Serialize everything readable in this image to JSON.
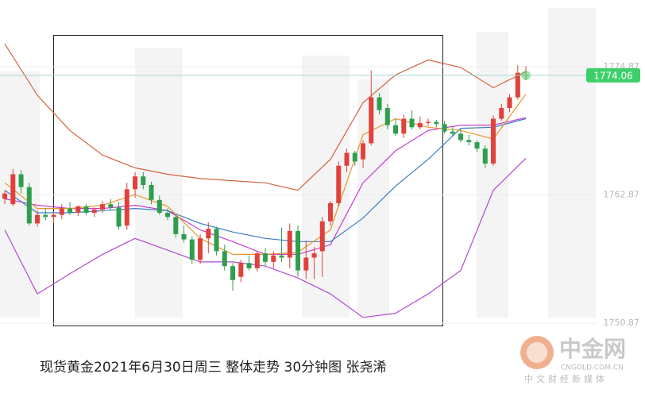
{
  "chart_data": {
    "type": "candlestick",
    "title": "现货黄金2021年6月30日周三 整体走势  30分钟图 张尧浠",
    "watermark": {
      "brand": "中金网",
      "site": "CNGOLD.COM.CN",
      "slogan": "中文财经新媒体"
    },
    "up_color": "#e0413a",
    "down_color": "#2e9e4c",
    "xlim": [
      -0.59,
      78.63
    ],
    "ylim": [
      1744.33,
      1781.11
    ],
    "yticks": [
      1774.87,
      1762.87,
      1750.87
    ],
    "current_price": 1774.06,
    "current_color": "#3ecf6a",
    "x": [
      0,
      1,
      2,
      3,
      4,
      5,
      6,
      7,
      8,
      9,
      10,
      11,
      12,
      13,
      14,
      15,
      16,
      17,
      18,
      19,
      20,
      21,
      22,
      23,
      24,
      25,
      26,
      27,
      28,
      29,
      30,
      31,
      32,
      33,
      34,
      35,
      36,
      37,
      38,
      39,
      40,
      41,
      42,
      43,
      44,
      45,
      46,
      47,
      48,
      49,
      50,
      51,
      52,
      53,
      54,
      55,
      56,
      57,
      58,
      59,
      60,
      61,
      62,
      63,
      64
    ],
    "open": [
      1762.5,
      1762.0,
      1764.8,
      1763.6,
      1760.2,
      1761.0,
      1760.8,
      1761.0,
      1761.6,
      1761.2,
      1761.8,
      1761.2,
      1761.5,
      1762.0,
      1761.7,
      1760.0,
      1763.4,
      1764.6,
      1763.8,
      1762.4,
      1761.2,
      1760.8,
      1759.2,
      1758.7,
      1756.8,
      1758.8,
      1759.7,
      1757.6,
      1756.2,
      1755.2,
      1756.5,
      1756.0,
      1757.4,
      1756.6,
      1757.2,
      1757.0,
      1759.5,
      1755.8,
      1757.0,
      1757.6,
      1760.4,
      1762.1,
      1765.6,
      1766.8,
      1766.2,
      1767.7,
      1772.0,
      1771.0,
      1769.4,
      1768.6,
      1770.0,
      1769.2,
      1769.6,
      1769.7,
      1769.5,
      1768.8,
      1768.6,
      1768.0,
      1767.8,
      1767.2,
      1765.8,
      1770.0,
      1771.0,
      1772.0,
      1774.0
    ],
    "high": [
      1763.3,
      1765.3,
      1765.2,
      1764.0,
      1761.4,
      1761.6,
      1761.3,
      1762.0,
      1762.2,
      1761.9,
      1762.0,
      1761.7,
      1762.3,
      1762.5,
      1762.2,
      1764.0,
      1765.0,
      1765.0,
      1764.1,
      1762.8,
      1761.6,
      1761.0,
      1760.0,
      1759.0,
      1759.2,
      1760.3,
      1759.9,
      1758.2,
      1756.5,
      1756.8,
      1757.2,
      1757.6,
      1757.9,
      1757.6,
      1759.8,
      1760.2,
      1760.0,
      1758.6,
      1758.0,
      1760.8,
      1762.3,
      1766.0,
      1767.2,
      1767.0,
      1768.0,
      1774.5,
      1772.4,
      1771.4,
      1770.0,
      1770.4,
      1770.8,
      1770.2,
      1770.0,
      1769.9,
      1769.8,
      1769.3,
      1769.0,
      1768.5,
      1768.0,
      1767.5,
      1770.3,
      1771.4,
      1772.3,
      1775.0,
      1774.9
    ],
    "low": [
      1762.0,
      1761.8,
      1763.0,
      1760.0,
      1759.9,
      1760.5,
      1760.2,
      1760.6,
      1761.0,
      1760.9,
      1761.0,
      1760.8,
      1761.2,
      1761.4,
      1759.6,
      1759.6,
      1762.6,
      1763.4,
      1762.0,
      1761.0,
      1760.5,
      1758.9,
      1758.4,
      1756.4,
      1756.4,
      1757.4,
      1757.2,
      1755.8,
      1753.9,
      1754.7,
      1755.8,
      1755.7,
      1756.2,
      1756.0,
      1756.6,
      1756.0,
      1755.2,
      1755.0,
      1755.0,
      1755.2,
      1760.0,
      1761.8,
      1765.0,
      1765.6,
      1765.4,
      1767.5,
      1770.4,
      1769.0,
      1768.4,
      1768.2,
      1769.0,
      1769.0,
      1769.3,
      1769.2,
      1768.6,
      1768.4,
      1767.8,
      1767.5,
      1766.9,
      1765.4,
      1765.6,
      1769.8,
      1770.6,
      1771.8,
      1773.6
    ],
    "close": [
      1763.0,
      1764.8,
      1763.6,
      1760.2,
      1761.0,
      1760.8,
      1761.0,
      1761.6,
      1761.2,
      1761.8,
      1761.2,
      1761.5,
      1762.0,
      1761.7,
      1759.9,
      1763.4,
      1764.6,
      1763.8,
      1762.4,
      1761.2,
      1760.8,
      1759.2,
      1758.7,
      1756.8,
      1758.8,
      1759.7,
      1757.6,
      1756.2,
      1754.9,
      1756.5,
      1756.0,
      1757.4,
      1756.6,
      1757.2,
      1757.0,
      1759.5,
      1755.8,
      1757.0,
      1757.4,
      1760.4,
      1762.1,
      1765.6,
      1766.8,
      1766.0,
      1767.7,
      1772.0,
      1770.8,
      1769.4,
      1768.6,
      1770.0,
      1769.2,
      1769.6,
      1769.7,
      1769.5,
      1768.8,
      1768.6,
      1768.0,
      1767.8,
      1767.2,
      1765.8,
      1770.0,
      1771.0,
      1772.0,
      1774.3,
      1774.1
    ],
    "lines": [
      {
        "color": "#d2643c",
        "x": [
          0,
          4,
          8,
          12,
          16,
          20,
          24,
          28,
          32,
          36,
          40,
          44,
          48,
          52,
          56,
          60,
          64
        ],
        "values": [
          1777.0,
          1772.2,
          1768.9,
          1766.6,
          1765.4,
          1764.8,
          1764.4,
          1764.2,
          1764.0,
          1763.3,
          1766.2,
          1771.5,
          1774.1,
          1775.5,
          1774.8,
          1772.9,
          1774.4
        ]
      },
      {
        "color": "#b24ad0",
        "x": [
          0,
          4,
          8,
          12,
          16,
          20,
          24,
          28,
          32,
          36,
          40,
          44,
          48,
          52,
          56,
          60,
          64
        ],
        "values": [
          1759.6,
          1753.6,
          1755.5,
          1757.3,
          1758.8,
          1757.7,
          1756.6,
          1756.6,
          1756.2,
          1755.1,
          1753.6,
          1751.4,
          1751.8,
          1753.6,
          1755.8,
          1763.3,
          1766.3
        ]
      },
      {
        "color": "#c83ccf",
        "x": [
          0,
          4,
          8,
          12,
          16,
          20,
          24,
          28,
          32,
          36,
          40,
          44,
          48,
          52,
          56,
          60,
          64
        ],
        "values": [
          1762.5,
          1761.9,
          1761.6,
          1761.6,
          1761.9,
          1761.4,
          1759.6,
          1758.5,
          1757.3,
          1757.3,
          1758.2,
          1764.0,
          1767.0,
          1768.9,
          1769.4,
          1769.4,
          1770.1
        ]
      },
      {
        "color": "#3a7cc2",
        "x": [
          0,
          4,
          8,
          12,
          16,
          20,
          24,
          28,
          32,
          36,
          40,
          44,
          48,
          52,
          56,
          60,
          64
        ],
        "values": [
          1763.3,
          1761.2,
          1761.2,
          1761.4,
          1761.6,
          1761.4,
          1760.2,
          1759.4,
          1758.8,
          1758.5,
          1758.5,
          1760.7,
          1763.7,
          1766.2,
          1769.1,
          1769.2,
          1770.0
        ]
      },
      {
        "color": "#e8962a",
        "x": [
          0,
          4,
          8,
          12,
          16,
          20,
          24,
          28,
          32,
          36,
          40,
          44,
          48,
          52,
          56,
          60,
          64
        ],
        "values": [
          1764.0,
          1761.6,
          1761.6,
          1761.9,
          1762.9,
          1761.8,
          1758.8,
          1757.3,
          1757.3,
          1757.5,
          1759.6,
          1768.5,
          1770.0,
          1769.2,
          1768.9,
          1768.1,
          1772.3
        ]
      }
    ]
  }
}
